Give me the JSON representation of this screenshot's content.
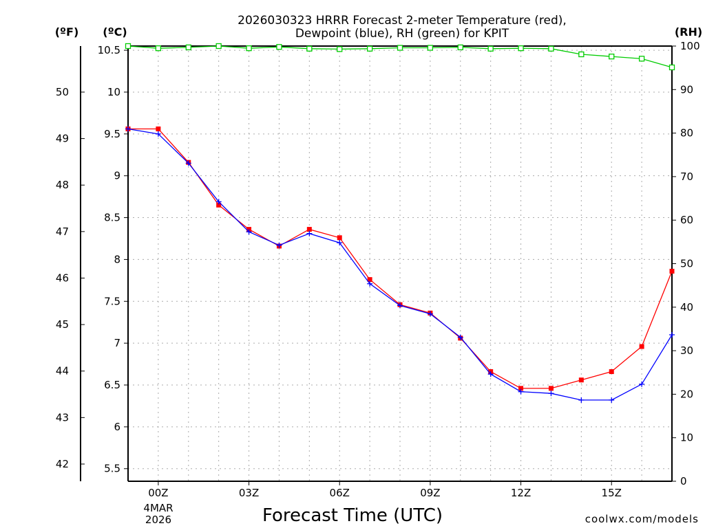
{
  "chart_data": {
    "type": "line",
    "title_line1": "2026030323 HRRR Forecast 2-meter Temperature (red),",
    "title_line2": "Dewpoint (blue), RH (green) for KPIT",
    "xlabel": "Forecast Time (UTC)",
    "credit": "coolwx.com/models",
    "units": {
      "f": "(ºF)",
      "c": "(ºC)",
      "rh": "(RH)"
    },
    "x_hours": [
      -1,
      0,
      1,
      2,
      3,
      4,
      5,
      6,
      7,
      8,
      9,
      10,
      11,
      12,
      13,
      14,
      15,
      16,
      17
    ],
    "xlim": [
      -1,
      17
    ],
    "x_ticks": [
      {
        "hour": 0,
        "label": "00Z"
      },
      {
        "hour": 3,
        "label": "03Z"
      },
      {
        "hour": 6,
        "label": "06Z"
      },
      {
        "hour": 9,
        "label": "09Z"
      },
      {
        "hour": 12,
        "label": "12Z"
      },
      {
        "hour": 15,
        "label": "15Z"
      }
    ],
    "date_label": [
      "4MAR",
      "2026"
    ],
    "ylim_c": [
      5.35,
      10.55
    ],
    "y_ticks_c": [
      "5.5",
      "6",
      "6.5",
      "7",
      "7.5",
      "8",
      "8.5",
      "9",
      "9.5",
      "10",
      "10.5"
    ],
    "y_ticks_f": [
      "42",
      "43",
      "44",
      "45",
      "46",
      "47",
      "48",
      "49",
      "50"
    ],
    "ylim_rh": [
      0,
      100
    ],
    "y_ticks_rh": [
      "0",
      "10",
      "20",
      "30",
      "40",
      "50",
      "60",
      "70",
      "80",
      "90",
      "100"
    ],
    "colors": {
      "temperature": "#ff0000",
      "dewpoint": "#0000ff",
      "rh": "#00cc00",
      "grid": "#aaaaaa",
      "credit": "#cc2222"
    },
    "series": [
      {
        "name": "Temperature",
        "unit": "C",
        "marker": "square",
        "values": [
          9.56,
          9.56,
          9.16,
          8.65,
          8.36,
          8.16,
          8.36,
          8.26,
          7.76,
          7.46,
          7.36,
          7.06,
          6.66,
          6.46,
          6.46,
          6.56,
          6.66,
          6.96,
          7.86
        ]
      },
      {
        "name": "Dewpoint",
        "unit": "C",
        "marker": "plus",
        "values": [
          9.56,
          9.5,
          9.15,
          8.69,
          8.33,
          8.17,
          8.31,
          8.2,
          7.71,
          7.45,
          7.35,
          7.07,
          6.63,
          6.42,
          6.4,
          6.32,
          6.32,
          6.51,
          7.1
        ]
      },
      {
        "name": "RH",
        "unit": "%",
        "marker": "open-square",
        "values": [
          100,
          99.5,
          99.7,
          100,
          99.5,
          99.8,
          99.4,
          99.3,
          99.4,
          99.6,
          99.6,
          99.7,
          99.4,
          99.5,
          99.4,
          98.1,
          97.6,
          97.1,
          95.1
        ]
      }
    ]
  }
}
